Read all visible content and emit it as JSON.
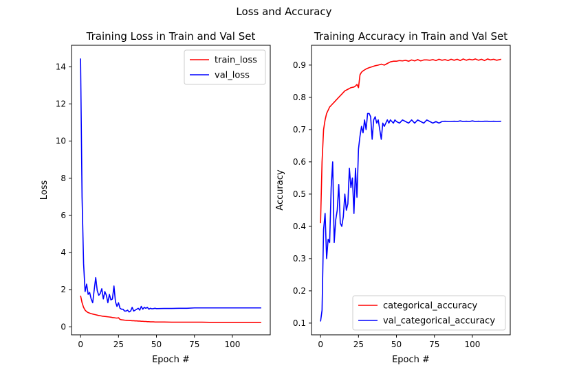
{
  "figure": {
    "title": "Loss and Accuracy"
  },
  "chart_data": [
    {
      "type": "line",
      "title": "Training Loss in Train and Val Set",
      "xlabel": "Epoch #",
      "ylabel": "Loss",
      "xlim": [
        -5.95,
        124.95
      ],
      "ylim": [
        -0.43,
        15.16
      ],
      "xticks": [
        0,
        25,
        50,
        75,
        100
      ],
      "yticks": [
        0,
        2,
        4,
        6,
        8,
        10,
        12,
        14
      ],
      "grid": false,
      "legend": "upper right",
      "series": [
        {
          "name": "train_loss",
          "color": "#ff0000",
          "x": [
            0,
            1,
            2,
            3,
            4,
            5,
            6,
            7,
            8,
            9,
            10,
            11,
            12,
            13,
            14,
            15,
            16,
            17,
            18,
            19,
            20,
            21,
            22,
            23,
            24,
            25,
            26,
            27,
            28,
            29,
            30,
            31,
            32,
            33,
            34,
            35,
            36,
            37,
            38,
            39,
            40,
            41,
            42,
            43,
            44,
            45,
            46,
            47,
            48,
            49,
            50,
            55,
            60,
            65,
            70,
            75,
            80,
            85,
            90,
            95,
            100,
            105,
            110,
            115,
            119
          ],
          "y": [
            1.68,
            1.3,
            1.05,
            0.9,
            0.82,
            0.77,
            0.74,
            0.71,
            0.69,
            0.67,
            0.65,
            0.63,
            0.61,
            0.6,
            0.58,
            0.57,
            0.56,
            0.55,
            0.54,
            0.53,
            0.52,
            0.5,
            0.49,
            0.48,
            0.47,
            0.49,
            0.4,
            0.38,
            0.37,
            0.36,
            0.35,
            0.35,
            0.34,
            0.34,
            0.33,
            0.33,
            0.32,
            0.32,
            0.31,
            0.31,
            0.3,
            0.3,
            0.29,
            0.29,
            0.28,
            0.28,
            0.27,
            0.27,
            0.27,
            0.26,
            0.26,
            0.26,
            0.25,
            0.25,
            0.25,
            0.25,
            0.25,
            0.24,
            0.24,
            0.24,
            0.24,
            0.24,
            0.24,
            0.24,
            0.24
          ]
        },
        {
          "name": "val_loss",
          "color": "#0000ff",
          "x": [
            0,
            1,
            2,
            3,
            4,
            5,
            6,
            7,
            8,
            9,
            10,
            11,
            12,
            13,
            14,
            15,
            16,
            17,
            18,
            19,
            20,
            21,
            22,
            23,
            24,
            25,
            26,
            27,
            28,
            29,
            30,
            31,
            32,
            33,
            34,
            35,
            36,
            37,
            38,
            39,
            40,
            41,
            42,
            43,
            44,
            45,
            46,
            47,
            48,
            49,
            50,
            55,
            60,
            65,
            70,
            75,
            80,
            85,
            90,
            95,
            100,
            105,
            110,
            115,
            119
          ],
          "y": [
            14.45,
            7.0,
            3.4,
            1.9,
            2.3,
            1.75,
            1.85,
            1.5,
            1.3,
            2.0,
            2.65,
            1.95,
            1.7,
            1.8,
            2.05,
            1.5,
            1.9,
            1.7,
            1.3,
            1.75,
            1.45,
            1.5,
            2.2,
            1.35,
            1.1,
            1.3,
            1.0,
            0.95,
            0.95,
            0.85,
            0.85,
            0.9,
            0.8,
            0.85,
            1.05,
            0.85,
            0.9,
            0.95,
            1.0,
            0.9,
            1.1,
            0.95,
            1.05,
            1.0,
            1.05,
            0.95,
            1.0,
            0.97,
            0.98,
            1.0,
            0.98,
            0.99,
            0.99,
            1.0,
            1.0,
            1.02,
            1.02,
            1.02,
            1.02,
            1.02,
            1.02,
            1.02,
            1.02,
            1.02,
            1.02
          ]
        }
      ]
    },
    {
      "type": "line",
      "title": "Training Accuracy in Train and Val Set",
      "xlabel": "Epoch #",
      "ylabel": "Accuracy",
      "xlim": [
        -5.95,
        124.95
      ],
      "ylim": [
        0.0636,
        0.9614
      ],
      "xticks": [
        0,
        25,
        50,
        75,
        100
      ],
      "yticks": [
        0.1,
        0.2,
        0.3,
        0.4,
        0.5,
        0.6,
        0.7,
        0.8,
        0.9
      ],
      "grid": false,
      "legend": "lower right",
      "series": [
        {
          "name": "categorical_accuracy",
          "color": "#ff0000",
          "x": [
            0,
            1,
            2,
            3,
            4,
            5,
            6,
            7,
            8,
            9,
            10,
            12,
            14,
            16,
            18,
            20,
            22,
            23,
            24,
            25,
            26,
            27,
            28,
            30,
            32,
            34,
            36,
            38,
            40,
            42,
            44,
            46,
            48,
            50,
            52,
            54,
            56,
            58,
            60,
            62,
            64,
            66,
            68,
            70,
            72,
            74,
            76,
            78,
            80,
            82,
            84,
            86,
            88,
            90,
            92,
            94,
            96,
            98,
            100,
            102,
            104,
            106,
            108,
            110,
            112,
            114,
            116,
            119
          ],
          "y": [
            0.41,
            0.6,
            0.7,
            0.73,
            0.75,
            0.76,
            0.77,
            0.775,
            0.78,
            0.785,
            0.79,
            0.8,
            0.81,
            0.82,
            0.825,
            0.83,
            0.832,
            0.835,
            0.84,
            0.83,
            0.87,
            0.878,
            0.882,
            0.888,
            0.892,
            0.895,
            0.898,
            0.9,
            0.903,
            0.9,
            0.905,
            0.91,
            0.912,
            0.912,
            0.914,
            0.913,
            0.915,
            0.912,
            0.916,
            0.913,
            0.917,
            0.913,
            0.916,
            0.916,
            0.915,
            0.917,
            0.914,
            0.918,
            0.915,
            0.917,
            0.914,
            0.918,
            0.915,
            0.918,
            0.914,
            0.919,
            0.915,
            0.918,
            0.916,
            0.919,
            0.915,
            0.918,
            0.914,
            0.919,
            0.916,
            0.918,
            0.915,
            0.918
          ]
        },
        {
          "name": "val_categorical_accuracy",
          "color": "#0000ff",
          "x": [
            0,
            1,
            2,
            3,
            4,
            5,
            6,
            7,
            8,
            9,
            10,
            11,
            12,
            13,
            14,
            15,
            16,
            17,
            18,
            19,
            20,
            21,
            22,
            23,
            24,
            25,
            26,
            27,
            28,
            29,
            30,
            31,
            32,
            33,
            34,
            35,
            36,
            37,
            38,
            39,
            40,
            41,
            42,
            43,
            44,
            45,
            46,
            47,
            48,
            49,
            50,
            52,
            54,
            56,
            58,
            60,
            62,
            64,
            66,
            68,
            70,
            72,
            74,
            76,
            78,
            80,
            82,
            84,
            86,
            88,
            90,
            92,
            94,
            96,
            98,
            100,
            102,
            104,
            106,
            108,
            110,
            112,
            114,
            116,
            119
          ],
          "y": [
            0.105,
            0.14,
            0.39,
            0.44,
            0.3,
            0.36,
            0.35,
            0.52,
            0.6,
            0.35,
            0.42,
            0.45,
            0.53,
            0.41,
            0.4,
            0.43,
            0.5,
            0.45,
            0.47,
            0.58,
            0.52,
            0.55,
            0.44,
            0.58,
            0.49,
            0.64,
            0.68,
            0.71,
            0.69,
            0.73,
            0.7,
            0.75,
            0.75,
            0.74,
            0.67,
            0.73,
            0.74,
            0.72,
            0.73,
            0.7,
            0.67,
            0.72,
            0.71,
            0.72,
            0.73,
            0.72,
            0.73,
            0.725,
            0.72,
            0.73,
            0.725,
            0.72,
            0.73,
            0.725,
            0.72,
            0.73,
            0.72,
            0.73,
            0.725,
            0.72,
            0.73,
            0.725,
            0.72,
            0.725,
            0.72,
            0.725,
            0.726,
            0.725,
            0.725,
            0.726,
            0.725,
            0.727,
            0.725,
            0.726,
            0.725,
            0.727,
            0.725,
            0.726,
            0.725,
            0.726,
            0.726,
            0.725,
            0.726,
            0.725,
            0.726
          ]
        }
      ]
    }
  ]
}
